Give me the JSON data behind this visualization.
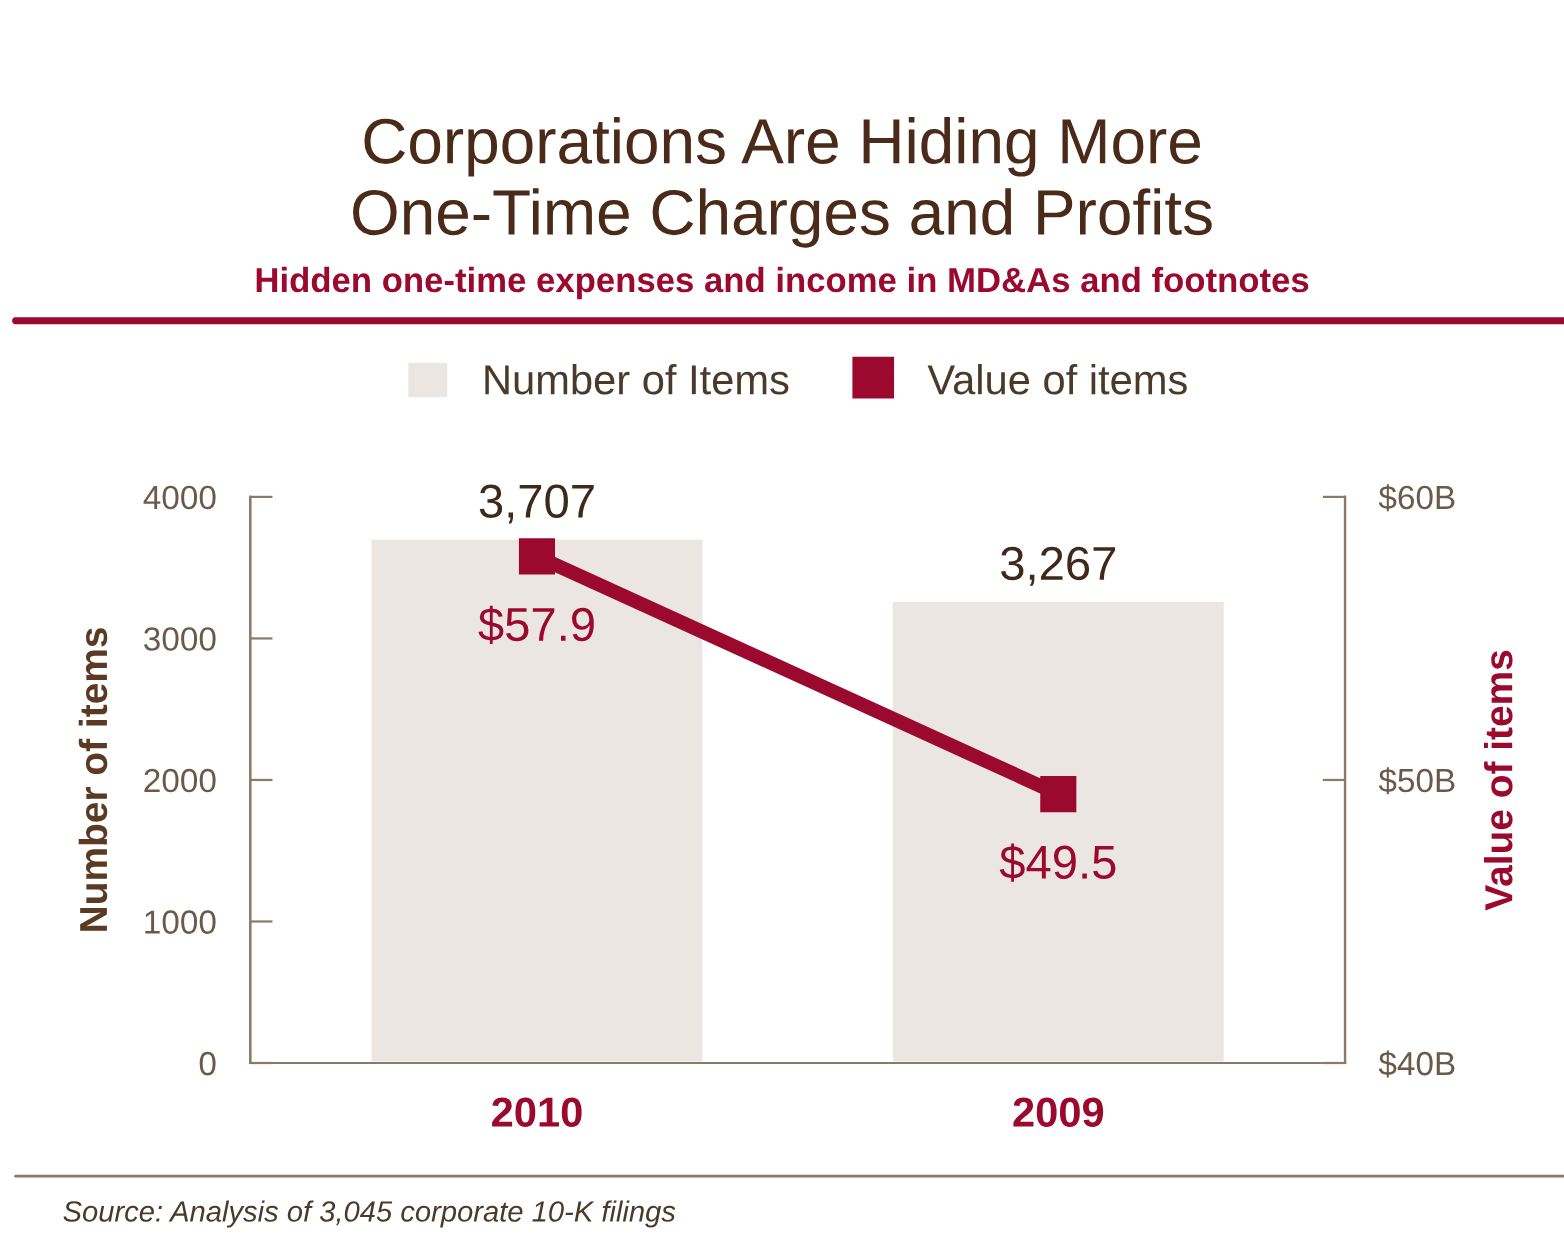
{
  "chart_data": {
    "type": "bar",
    "title": "Corporations Are Hiding More\nOne-Time Charges and Profits",
    "subtitle": "Hidden one-time expenses and income in MD&As and footnotes",
    "ylabel": "Number of items",
    "y2label": "Value of items",
    "categories": [
      "2010",
      "2009"
    ],
    "series": [
      {
        "name": "Number of Items",
        "color": "#ebe6e2",
        "values": [
          3707,
          3267
        ],
        "value_labels": [
          "3,707",
          "3,267"
        ]
      },
      {
        "name": "Value of items",
        "type": "line",
        "axis": "y2",
        "color": "#9b0a2e",
        "values": [
          57.9,
          49.5
        ],
        "value_labels": [
          "$57.9",
          "$49.5"
        ],
        "marker": "square"
      }
    ],
    "ylim": [
      0,
      4000
    ],
    "yticks": [
      0,
      1000,
      2000,
      3000,
      4000
    ],
    "y2lim": [
      40,
      60
    ],
    "y2ticks": [
      {
        "value": 40,
        "label": "$40B"
      },
      {
        "value": 50,
        "label": "$50B"
      },
      {
        "value": 60,
        "label": "$60B"
      }
    ],
    "legend": "top",
    "grid": false,
    "annotations": [
      "Source: Analysis of 3,045 corporate 10-K filings"
    ]
  }
}
